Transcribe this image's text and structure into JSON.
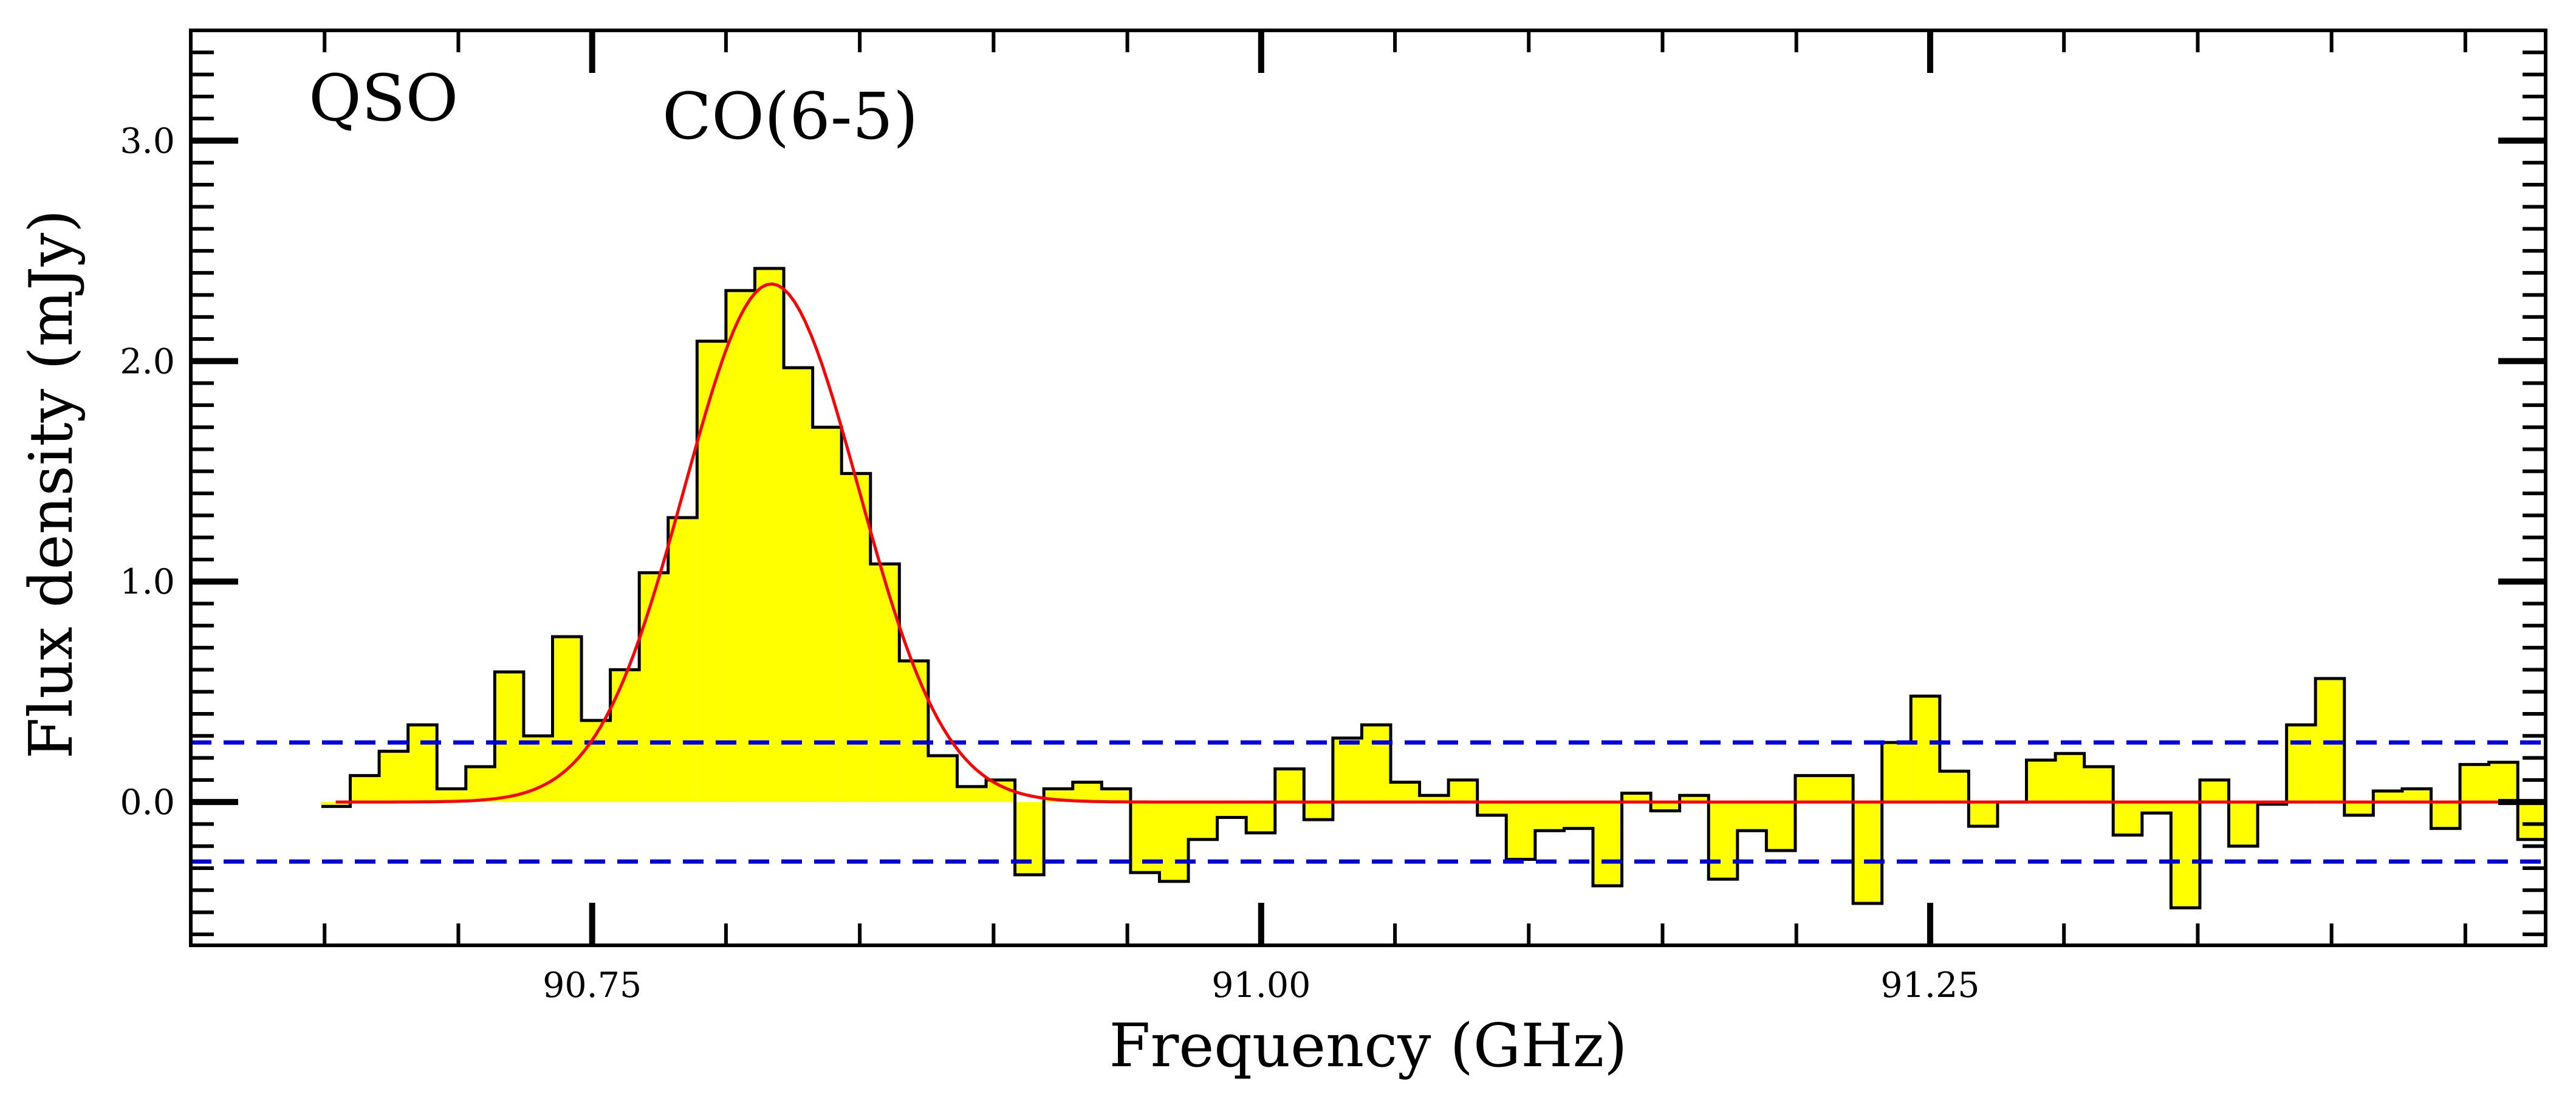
{
  "chart_data": {
    "type": "step-histogram",
    "xlabel": "Frequency (GHz)",
    "ylabel": "Flux density (mJy)",
    "xlim": [
      90.6,
      91.48
    ],
    "ylim": [
      -0.65,
      3.5
    ],
    "x_ticks": [
      "90.75",
      "91.00",
      "91.25"
    ],
    "x_tick_values": [
      90.75,
      91.0,
      91.25
    ],
    "y_ticks": [
      "0.0",
      "1.0",
      "2.0",
      "3.0"
    ],
    "y_tick_values": [
      0.0,
      1.0,
      2.0,
      3.0
    ],
    "annotations": [
      "QSO",
      "CO(6-5)"
    ],
    "bin_width": 0.0108,
    "bin_centers": [
      90.6542,
      90.665,
      90.6758,
      90.6866,
      90.6974,
      90.7082,
      90.719,
      90.7298,
      90.7406,
      90.7514,
      90.7622,
      90.773,
      90.7838,
      90.7946,
      90.8054,
      90.8162,
      90.827,
      90.8378,
      90.8486,
      90.8594,
      90.8702,
      90.881,
      90.8918,
      90.9026,
      90.9134,
      90.9242,
      90.935,
      90.9458,
      90.9566,
      90.9674,
      90.9782,
      90.989,
      90.9998,
      91.0106,
      91.0214,
      91.0322,
      91.043,
      91.0538,
      91.0646,
      91.0754,
      91.0862,
      91.097,
      91.1078,
      91.1186,
      91.1294,
      91.1402,
      91.151,
      91.1618,
      91.1726,
      91.1834,
      91.1942,
      91.205,
      91.2158,
      91.2266,
      91.2374,
      91.2482,
      91.259,
      91.2698,
      91.2806,
      91.2914,
      91.3022,
      91.313,
      91.3238,
      91.3346,
      91.3454,
      91.3562,
      91.367,
      91.3778,
      91.3886,
      91.3994,
      91.4102,
      91.421,
      91.4318,
      91.4426,
      91.4534,
      91.4642,
      91.475
    ],
    "flux": [
      -0.02,
      0.12,
      0.23,
      0.35,
      0.06,
      0.16,
      0.59,
      0.3,
      0.75,
      0.37,
      0.6,
      1.04,
      1.29,
      2.09,
      2.32,
      2.42,
      1.97,
      1.7,
      1.49,
      1.08,
      0.64,
      0.21,
      0.07,
      0.1,
      -0.33,
      0.06,
      0.09,
      0.06,
      -0.32,
      -0.36,
      -0.17,
      -0.07,
      -0.14,
      0.15,
      -0.08,
      0.29,
      0.35,
      0.09,
      0.03,
      0.1,
      -0.06,
      -0.26,
      -0.13,
      -0.12,
      -0.38,
      0.04,
      -0.04,
      0.03,
      -0.35,
      -0.13,
      -0.22,
      0.12,
      0.12,
      -0.46,
      0.27,
      0.48,
      0.14,
      -0.11,
      0.0,
      0.19,
      0.22,
      0.16,
      -0.15,
      -0.05,
      -0.48,
      0.1,
      -0.2,
      -0.01,
      0.35,
      0.56,
      -0.06,
      0.05,
      0.06,
      -0.12,
      0.17,
      0.18,
      -0.17
    ],
    "series": [
      {
        "type": "gaussian-fit",
        "amplitude": 2.35,
        "center": 90.817,
        "sigma": 0.0325,
        "color": "#ff0000"
      },
      {
        "type": "hline",
        "values": [
          0.27,
          -0.27
        ],
        "style": "dashed",
        "color": "#0000dd"
      }
    ],
    "fill_color": "#ffff00",
    "edge_color": "#000000",
    "grid": false
  }
}
